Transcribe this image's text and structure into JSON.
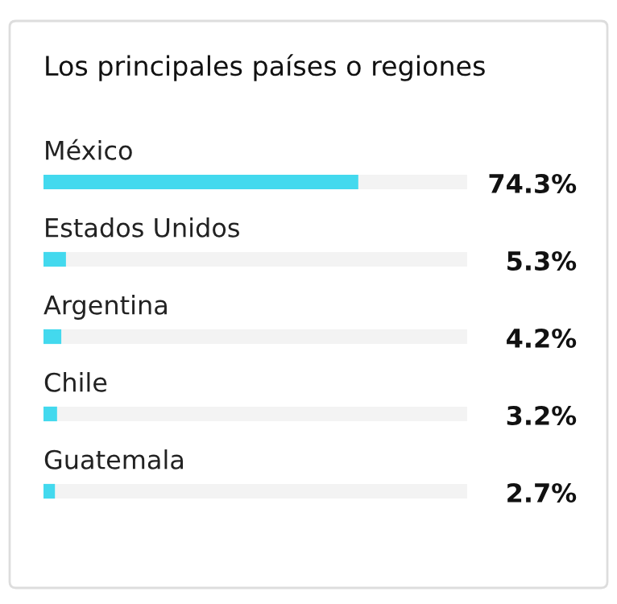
{
  "chart_data": {
    "type": "bar",
    "orientation": "horizontal",
    "title": "Los principales países o regiones",
    "categories": [
      "México",
      "Estados Unidos",
      "Argentina",
      "Chile",
      "Guatemala"
    ],
    "values": [
      74.3,
      5.3,
      4.2,
      3.2,
      2.7
    ],
    "value_labels": [
      "74.3%",
      "5.3%",
      "4.2%",
      "3.2%",
      "2.7%"
    ],
    "color": "#43d9ee",
    "xlim": [
      0,
      100
    ]
  }
}
